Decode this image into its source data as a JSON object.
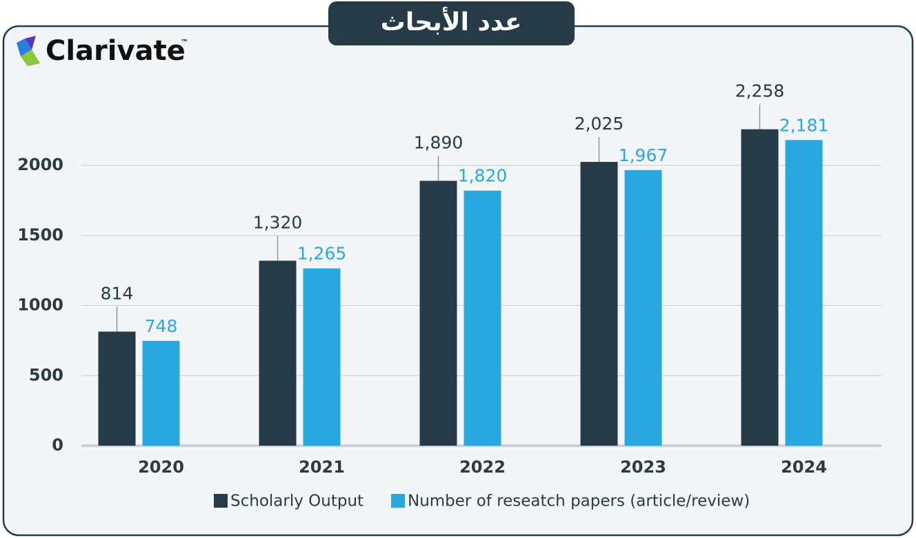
{
  "chart_data": {
    "type": "bar",
    "title": "عدد الأبحاث",
    "logo": "Clarivate",
    "logo_mark": "™",
    "categories": [
      "2020",
      "2021",
      "2022",
      "2023",
      "2024"
    ],
    "series": [
      {
        "name": "Scholarly Output",
        "color": "#263a47",
        "values": [
          814,
          1320,
          1890,
          2025,
          2258
        ],
        "value_labels": [
          "814",
          "1,320",
          "1,890",
          "2,025",
          "2,258"
        ]
      },
      {
        "name": "Number of reseatch papers (article/review)",
        "color": "#29a8e0",
        "values": [
          748,
          1265,
          1820,
          1967,
          2181
        ],
        "value_labels": [
          "748",
          "1,265",
          "1,820",
          "1,967",
          "2,181"
        ]
      }
    ],
    "ylim": [
      0,
      2500
    ],
    "yticks": [
      0,
      500,
      1000,
      1500,
      2000
    ],
    "grid": true,
    "legend": "bottom"
  }
}
